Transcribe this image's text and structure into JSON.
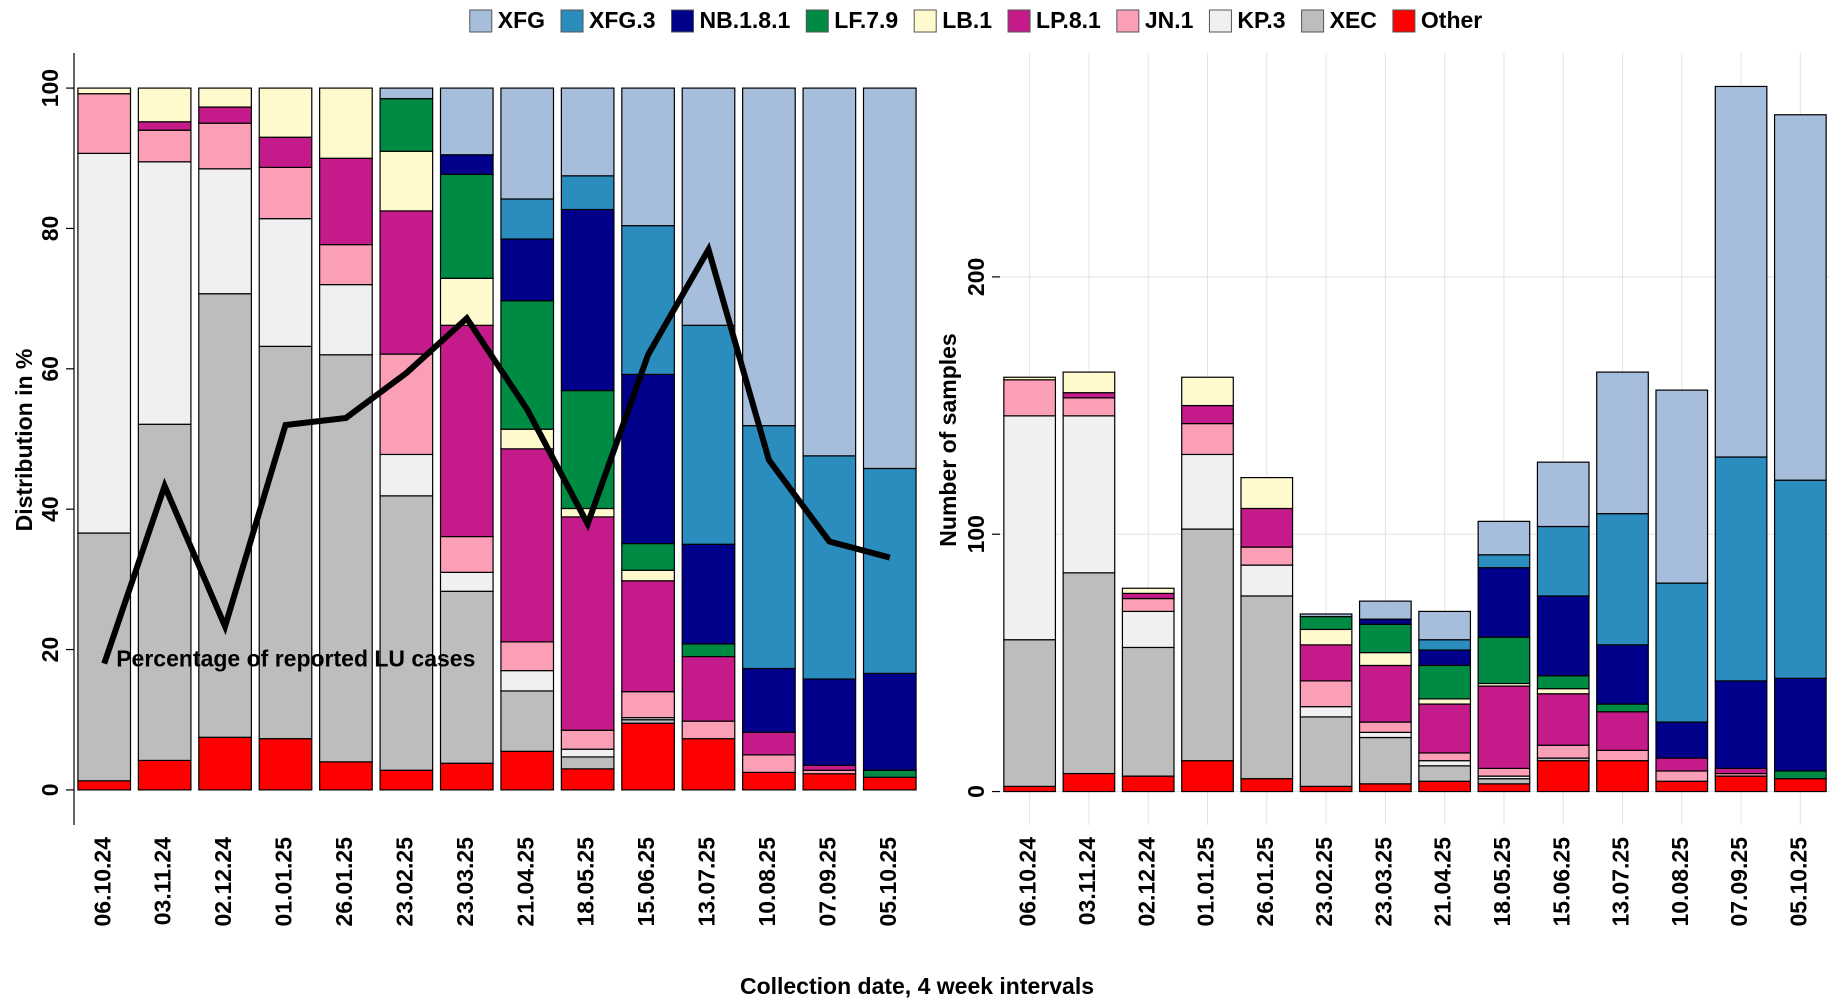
{
  "chart_data": [
    {
      "type": "bar",
      "stacked": true,
      "legend": "top",
      "ylabel": "Distribution in %",
      "xlabel": "Collection date, 4 week intervals",
      "categories": [
        "06.10.24",
        "03.11.24",
        "02.12.24",
        "01.01.25",
        "26.01.25",
        "23.02.25",
        "23.03.25",
        "21.04.25",
        "18.05.25",
        "15.06.25",
        "13.07.25",
        "10.08.25",
        "07.09.25",
        "05.10.25"
      ],
      "ylim": [
        -5,
        105
      ],
      "yticks": [
        0,
        20,
        40,
        60,
        80,
        100
      ],
      "grid": false,
      "series": [
        {
          "name": "XFG",
          "color": "#a6bddb",
          "values": [
            0,
            0,
            0,
            0,
            0,
            1.5,
            9.5,
            15.8,
            12.5,
            19.6,
            33.8,
            48.1,
            52.4,
            54.2
          ]
        },
        {
          "name": "XFG.3",
          "color": "#2b8cbe",
          "values": [
            0,
            0,
            0,
            0,
            0,
            0,
            0,
            5.7,
            4.8,
            21.2,
            31.2,
            34.6,
            31.8,
            29.2
          ]
        },
        {
          "name": "NB.1.8.1",
          "color": "#00008b",
          "values": [
            0,
            0,
            0,
            0,
            0,
            0,
            2.8,
            8.8,
            25.8,
            24.1,
            14.2,
            9.1,
            12.3,
            13.8
          ]
        },
        {
          "name": "LF.7.9",
          "color": "#008b45",
          "values": [
            0,
            0,
            0,
            0,
            0,
            7.5,
            14.8,
            18.3,
            16.8,
            3.8,
            1.8,
            0,
            0,
            1.0
          ]
        },
        {
          "name": "LB.1",
          "color": "#fffacd",
          "values": [
            0.8,
            4.8,
            2.7,
            7.0,
            10,
            8.5,
            6.7,
            2.8,
            1.2,
            1.5,
            0,
            0,
            0,
            0
          ]
        },
        {
          "name": "LP.8.1",
          "color": "#c51b8a",
          "values": [
            0,
            1.2,
            2.3,
            4.3,
            12.3,
            20.4,
            30.1,
            27.5,
            30.4,
            15.8,
            9.2,
            3.2,
            0.7,
            0
          ]
        },
        {
          "name": "JN.1",
          "color": "#fa9fb5",
          "values": [
            8.5,
            4.5,
            6.5,
            7.3,
            5.7,
            14.3,
            5.1,
            4.1,
            2.7,
            3.7,
            2.5,
            2.5,
            0.5,
            0
          ]
        },
        {
          "name": "KP.3",
          "color": "#f0f0f0",
          "values": [
            54.1,
            37.4,
            17.8,
            18.2,
            10,
            5.9,
            2.7,
            2.9,
            1.1,
            0.3,
            0,
            0,
            0,
            0
          ]
        },
        {
          "name": "XEC",
          "color": "#bdbdbd",
          "values": [
            35.3,
            47.9,
            63.2,
            55.9,
            58,
            39.1,
            24.5,
            8.6,
            1.7,
            0.5,
            0,
            0,
            0,
            0
          ]
        },
        {
          "name": "Other",
          "color": "#ff0000",
          "values": [
            1.3,
            4.2,
            7.5,
            7.3,
            4,
            2.8,
            3.8,
            5.5,
            3,
            9.5,
            7.3,
            2.5,
            2.3,
            1.8
          ]
        }
      ],
      "line": {
        "name": "Percentage of reported LU cases",
        "color": "#000000",
        "values": [
          18,
          43.3,
          23.3,
          52,
          53,
          59.4,
          67.2,
          54.2,
          37.9,
          62,
          77,
          47,
          35.4,
          33.1
        ]
      }
    },
    {
      "type": "bar",
      "stacked": true,
      "ylabel": "Number of samples",
      "categories": [
        "06.10.24",
        "03.11.24",
        "02.12.24",
        "01.01.25",
        "26.01.25",
        "23.02.25",
        "23.03.25",
        "21.04.25",
        "18.05.25",
        "15.06.25",
        "13.07.25",
        "10.08.25",
        "07.09.25",
        "05.10.25"
      ],
      "ylim": [
        -13,
        287
      ],
      "yticks": [
        0,
        100,
        200
      ],
      "grid": true,
      "series": [
        {
          "values": [
            0,
            0,
            0,
            0,
            0,
            1,
            7,
            11,
            13,
            25,
            55,
            75,
            144,
            142
          ]
        },
        {
          "values": [
            0,
            0,
            0,
            0,
            0,
            0,
            0,
            4,
            5,
            27,
            51,
            54,
            87,
            77
          ]
        },
        {
          "values": [
            0,
            0,
            0,
            0,
            0,
            0,
            2,
            6,
            27,
            31,
            23,
            14,
            34,
            36
          ]
        },
        {
          "values": [
            0,
            0,
            0,
            0,
            0,
            5,
            11,
            13,
            18,
            5,
            3,
            0,
            0,
            3
          ]
        },
        {
          "values": [
            1,
            8,
            2,
            11,
            12,
            6,
            5,
            2,
            1,
            2,
            0,
            0,
            0,
            0
          ]
        },
        {
          "values": [
            0,
            2,
            2,
            7,
            15,
            14,
            22,
            19,
            32,
            20,
            15,
            5,
            2,
            0
          ]
        },
        {
          "values": [
            14,
            7,
            5,
            12,
            7,
            10,
            4,
            3,
            3,
            5,
            4,
            4,
            1,
            0
          ]
        },
        {
          "values": [
            87,
            61,
            14,
            29,
            12,
            4,
            2,
            2,
            1,
            0,
            0,
            0,
            0,
            0
          ]
        },
        {
          "values": [
            57,
            78,
            50,
            90,
            71,
            27,
            18,
            6,
            2,
            1,
            0,
            0,
            0,
            0
          ]
        },
        {
          "values": [
            2,
            7,
            6,
            12,
            5,
            2,
            3,
            4,
            3,
            12,
            12,
            4,
            6,
            5
          ]
        }
      ]
    }
  ]
}
